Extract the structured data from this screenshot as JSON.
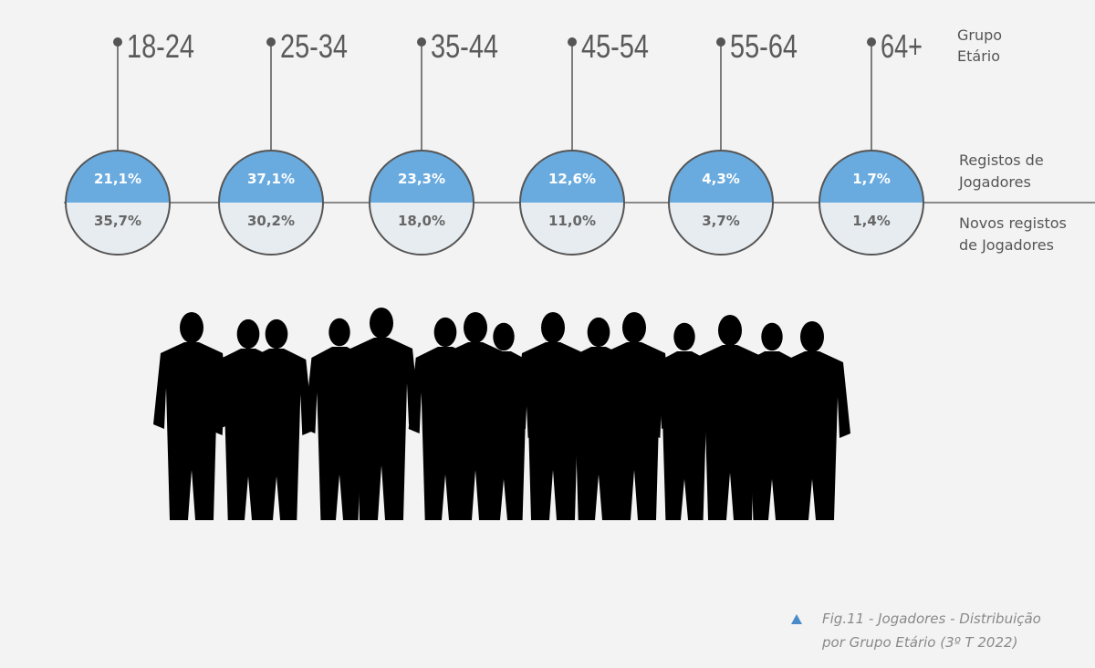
{
  "legend": {
    "age_group": [
      "Grupo",
      "Etário"
    ],
    "registrations": [
      "Registos de",
      "Jogadores"
    ],
    "new_registrations": [
      "Novos registos",
      "de Jogadores"
    ]
  },
  "groups": [
    {
      "label": "18-24",
      "registrations": "21,1%",
      "new_registrations": "35,7%"
    },
    {
      "label": "25-34",
      "registrations": "37,1%",
      "new_registrations": "30,2%"
    },
    {
      "label": "35-44",
      "registrations": "23,3%",
      "new_registrations": "18,0%"
    },
    {
      "label": "45-54",
      "registrations": "12,6%",
      "new_registrations": "11,0%"
    },
    {
      "label": "55-64",
      "registrations": "4,3%",
      "new_registrations": "3,7%"
    },
    {
      "label": "64+",
      "registrations": "1,7%",
      "new_registrations": "1,4%"
    }
  ],
  "caption": [
    "Fig.11 - Jogadores - Distribuição",
    "por Grupo Etário (3º T 2022)"
  ]
}
